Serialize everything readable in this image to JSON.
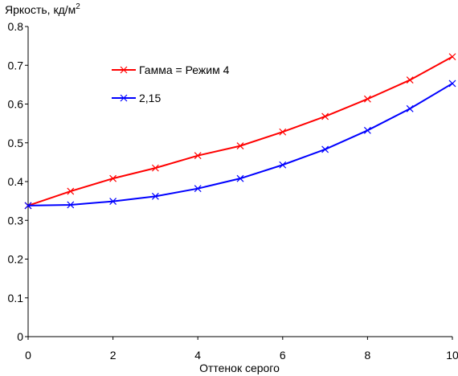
{
  "chart_data": {
    "type": "line",
    "ylabel_prefix": "Яркость, кд/м",
    "ylabel_superscript": "2",
    "xlabel": "Оттенок серого",
    "xlim": [
      0,
      10
    ],
    "ylim": [
      0,
      0.8
    ],
    "xticks": [
      "0",
      "2",
      "4",
      "6",
      "8",
      "10"
    ],
    "yticks": [
      "0",
      "0.1",
      "0.2",
      "0.3",
      "0.4",
      "0.5",
      "0.6",
      "0.7",
      "0.8"
    ],
    "grid": false,
    "legend_position": "upper-left-inside",
    "x": [
      0,
      1,
      2,
      3,
      4,
      5,
      6,
      7,
      8,
      9,
      10
    ],
    "series": [
      {
        "name": "Гамма = Режим 4",
        "color": "#ff0000",
        "marker": "x",
        "values": [
          0.338,
          0.375,
          0.408,
          0.435,
          0.467,
          0.492,
          0.528,
          0.568,
          0.613,
          0.662,
          0.722
        ]
      },
      {
        "name": "2,15",
        "color": "#0000ff",
        "marker": "x",
        "values": [
          0.338,
          0.34,
          0.349,
          0.362,
          0.382,
          0.408,
          0.443,
          0.483,
          0.532,
          0.588,
          0.653
        ]
      }
    ]
  }
}
